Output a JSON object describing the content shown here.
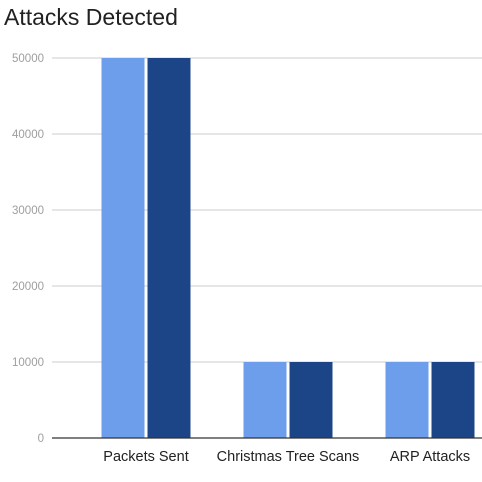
{
  "chart_data": {
    "type": "bar",
    "title": "Attacks Detected",
    "xlabel": "",
    "ylabel": "",
    "categories": [
      "Packets Sent",
      "Christmas Tree Scans",
      "ARP Attacks"
    ],
    "series": [
      {
        "values": [
          50000,
          10000,
          10000
        ],
        "color": "#6d9eeb"
      },
      {
        "values": [
          50000,
          10000,
          10000
        ],
        "color": "#1c4587"
      }
    ],
    "ylim": [
      0,
      50000
    ],
    "yticks": [
      0,
      10000,
      20000,
      30000,
      40000,
      50000
    ],
    "grid": true,
    "legend": "none"
  }
}
